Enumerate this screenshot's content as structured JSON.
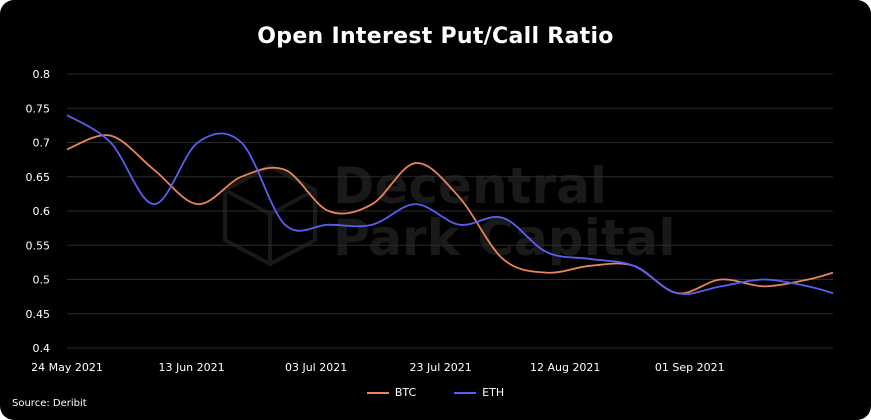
{
  "title": "Open Interest Put/Call Ratio",
  "source": "Source: Deribit",
  "watermark": {
    "line1": "Decentral",
    "line2": "Park Capital"
  },
  "colors": {
    "background": "#000000",
    "btc": "#e8845a",
    "eth": "#5a5ef0",
    "text": "#ffffff",
    "grid": "#2a2a2a"
  },
  "chart_data": {
    "type": "line",
    "title": "Open Interest Put/Call Ratio",
    "xlabel": "",
    "ylabel": "",
    "ylim": [
      0.4,
      0.8
    ],
    "yticks": [
      "0.8",
      "0.75",
      "0.7",
      "0.65",
      "0.6",
      "0.55",
      "0.5",
      "0.45",
      "0.4"
    ],
    "xticks": [
      "24 May 2021",
      "13 Jun 2021",
      "03 Jul 2021",
      "23 Jul 2021",
      "12 Aug 2021",
      "01 Sep 2021"
    ],
    "xlim": [
      "2021-05-24",
      "2021-09-24"
    ],
    "legend_position": "bottom",
    "x": [
      "2021-05-24",
      "2021-05-31",
      "2021-06-07",
      "2021-06-14",
      "2021-06-21",
      "2021-06-28",
      "2021-07-05",
      "2021-07-12",
      "2021-07-19",
      "2021-07-26",
      "2021-08-02",
      "2021-08-09",
      "2021-08-16",
      "2021-08-23",
      "2021-08-30",
      "2021-09-06",
      "2021-09-13",
      "2021-09-20",
      "2021-09-24"
    ],
    "series": [
      {
        "name": "BTC",
        "values": [
          0.69,
          0.71,
          0.66,
          0.61,
          0.65,
          0.66,
          0.6,
          0.61,
          0.67,
          0.62,
          0.53,
          0.51,
          0.52,
          0.52,
          0.48,
          0.5,
          0.49,
          0.5,
          0.51
        ]
      },
      {
        "name": "ETH",
        "values": [
          0.74,
          0.7,
          0.61,
          0.7,
          0.7,
          0.58,
          0.58,
          0.58,
          0.61,
          0.58,
          0.59,
          0.54,
          0.53,
          0.52,
          0.48,
          0.49,
          0.5,
          0.49,
          0.48
        ]
      }
    ]
  }
}
